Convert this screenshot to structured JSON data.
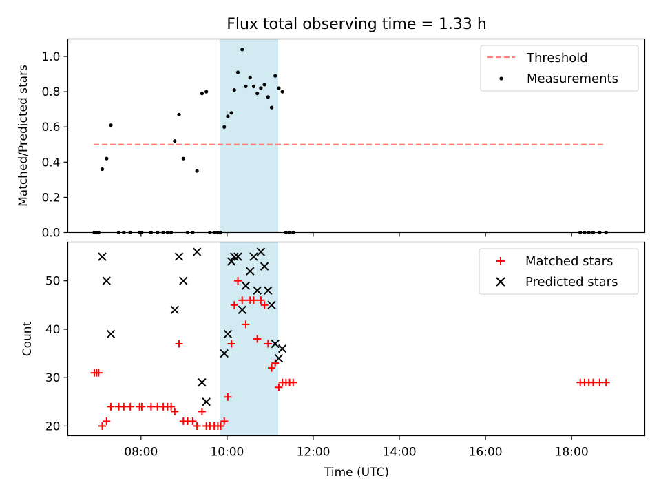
{
  "chart_data": [
    {
      "type": "scatter",
      "title": "Flux total observing time = 1.33 h",
      "xlabel": "",
      "ylabel": "Matched/Predicted stars",
      "xlim": [
        "06:18",
        "19:42"
      ],
      "ylim": [
        0,
        1.1
      ],
      "yticks": [
        "0.0",
        "0.2",
        "0.4",
        "0.6",
        "0.8",
        "1.0"
      ],
      "shaded_interval": [
        "09:50",
        "11:10"
      ],
      "legend_position": "top-right",
      "series": [
        {
          "name": "Threshold",
          "style": "dashed-line",
          "color": "#ff7f7f",
          "points": [
            [
              "06:54",
              0.5
            ],
            [
              "18:48",
              0.5
            ]
          ]
        },
        {
          "name": "Measurements",
          "style": "dot",
          "color": "#000000",
          "points": [
            [
              "06:55",
              0
            ],
            [
              "06:58",
              0
            ],
            [
              "07:01",
              0
            ],
            [
              "07:06",
              0.36
            ],
            [
              "07:12",
              0.42
            ],
            [
              "07:18",
              0.61
            ],
            [
              "07:29",
              0
            ],
            [
              "07:36",
              0
            ],
            [
              "07:45",
              0
            ],
            [
              "07:58",
              0
            ],
            [
              "08:01",
              0
            ],
            [
              "08:14",
              0
            ],
            [
              "08:23",
              0
            ],
            [
              "08:31",
              0
            ],
            [
              "08:37",
              0
            ],
            [
              "08:42",
              0
            ],
            [
              "08:47",
              0.52
            ],
            [
              "08:53",
              0.67
            ],
            [
              "08:59",
              0.42
            ],
            [
              "09:05",
              0
            ],
            [
              "09:12",
              0
            ],
            [
              "09:18",
              0.35
            ],
            [
              "09:25",
              0.79
            ],
            [
              "09:31",
              0.8
            ],
            [
              "09:36",
              0
            ],
            [
              "09:42",
              0
            ],
            [
              "09:47",
              0
            ],
            [
              "09:51",
              0
            ],
            [
              "09:56",
              0.6
            ],
            [
              "10:01",
              0.66
            ],
            [
              "10:06",
              0.68
            ],
            [
              "10:10",
              0.81
            ],
            [
              "10:15",
              0.91
            ],
            [
              "10:21",
              1.04
            ],
            [
              "10:26",
              0.83
            ],
            [
              "10:32",
              0.88
            ],
            [
              "10:37",
              0.83
            ],
            [
              "10:42",
              0.79
            ],
            [
              "10:47",
              0.82
            ],
            [
              "10:52",
              0.84
            ],
            [
              "10:57",
              0.77
            ],
            [
              "11:02",
              0.71
            ],
            [
              "11:07",
              0.89
            ],
            [
              "11:12",
              0.82
            ],
            [
              "11:17",
              0.8
            ],
            [
              "11:22",
              0
            ],
            [
              "11:27",
              0
            ],
            [
              "11:32",
              0
            ],
            [
              "18:12",
              0
            ],
            [
              "18:18",
              0
            ],
            [
              "18:24",
              0
            ],
            [
              "18:30",
              0
            ],
            [
              "18:39",
              0
            ],
            [
              "18:48",
              0
            ]
          ]
        }
      ]
    },
    {
      "type": "scatter",
      "title": "",
      "xlabel": "Time (UTC)",
      "ylabel": "Count",
      "xlim": [
        "06:18",
        "19:42"
      ],
      "ylim": [
        18,
        58
      ],
      "yticks": [
        "20",
        "30",
        "40",
        "50"
      ],
      "xticks": [
        "08:00",
        "10:00",
        "12:00",
        "14:00",
        "16:00",
        "18:00"
      ],
      "shaded_interval": [
        "09:50",
        "11:10"
      ],
      "legend_position": "top-right",
      "series": [
        {
          "name": "Matched stars",
          "marker": "plus",
          "color": "#ff0000",
          "points": [
            [
              "06:55",
              31
            ],
            [
              "06:58",
              31
            ],
            [
              "07:01",
              31
            ],
            [
              "07:06",
              20
            ],
            [
              "07:12",
              21
            ],
            [
              "07:18",
              24
            ],
            [
              "07:29",
              24
            ],
            [
              "07:36",
              24
            ],
            [
              "07:45",
              24
            ],
            [
              "07:58",
              24
            ],
            [
              "08:01",
              24
            ],
            [
              "08:14",
              24
            ],
            [
              "08:23",
              24
            ],
            [
              "08:31",
              24
            ],
            [
              "08:37",
              24
            ],
            [
              "08:42",
              24
            ],
            [
              "08:47",
              23
            ],
            [
              "08:53",
              37
            ],
            [
              "08:59",
              21
            ],
            [
              "09:05",
              21
            ],
            [
              "09:12",
              21
            ],
            [
              "09:18",
              20
            ],
            [
              "09:25",
              23
            ],
            [
              "09:31",
              20
            ],
            [
              "09:36",
              20
            ],
            [
              "09:42",
              20
            ],
            [
              "09:47",
              20
            ],
            [
              "09:51",
              20
            ],
            [
              "09:56",
              21
            ],
            [
              "10:01",
              26
            ],
            [
              "10:06",
              37
            ],
            [
              "10:10",
              45
            ],
            [
              "10:15",
              50
            ],
            [
              "10:21",
              46
            ],
            [
              "10:26",
              41
            ],
            [
              "10:32",
              46
            ],
            [
              "10:37",
              46
            ],
            [
              "10:42",
              38
            ],
            [
              "10:47",
              46
            ],
            [
              "10:52",
              45
            ],
            [
              "10:57",
              37
            ],
            [
              "11:02",
              32
            ],
            [
              "11:07",
              33
            ],
            [
              "11:12",
              28
            ],
            [
              "11:17",
              29
            ],
            [
              "11:22",
              29
            ],
            [
              "11:27",
              29
            ],
            [
              "11:32",
              29
            ],
            [
              "18:12",
              29
            ],
            [
              "18:18",
              29
            ],
            [
              "18:24",
              29
            ],
            [
              "18:30",
              29
            ],
            [
              "18:39",
              29
            ],
            [
              "18:48",
              29
            ]
          ]
        },
        {
          "name": "Predicted stars",
          "marker": "x",
          "color": "#000000",
          "points": [
            [
              "07:06",
              55
            ],
            [
              "07:12",
              50
            ],
            [
              "07:18",
              39
            ],
            [
              "08:47",
              44
            ],
            [
              "08:53",
              55
            ],
            [
              "08:59",
              50
            ],
            [
              "09:18",
              56
            ],
            [
              "09:25",
              29
            ],
            [
              "09:31",
              25
            ],
            [
              "09:56",
              35
            ],
            [
              "10:01",
              39
            ],
            [
              "10:06",
              54
            ],
            [
              "10:10",
              55
            ],
            [
              "10:15",
              55
            ],
            [
              "10:21",
              44
            ],
            [
              "10:26",
              49
            ],
            [
              "10:32",
              52
            ],
            [
              "10:37",
              55
            ],
            [
              "10:42",
              48
            ],
            [
              "10:47",
              56
            ],
            [
              "10:52",
              53
            ],
            [
              "10:57",
              48
            ],
            [
              "11:02",
              45
            ],
            [
              "11:07",
              37
            ],
            [
              "11:12",
              34
            ],
            [
              "11:17",
              36
            ]
          ]
        }
      ]
    }
  ]
}
